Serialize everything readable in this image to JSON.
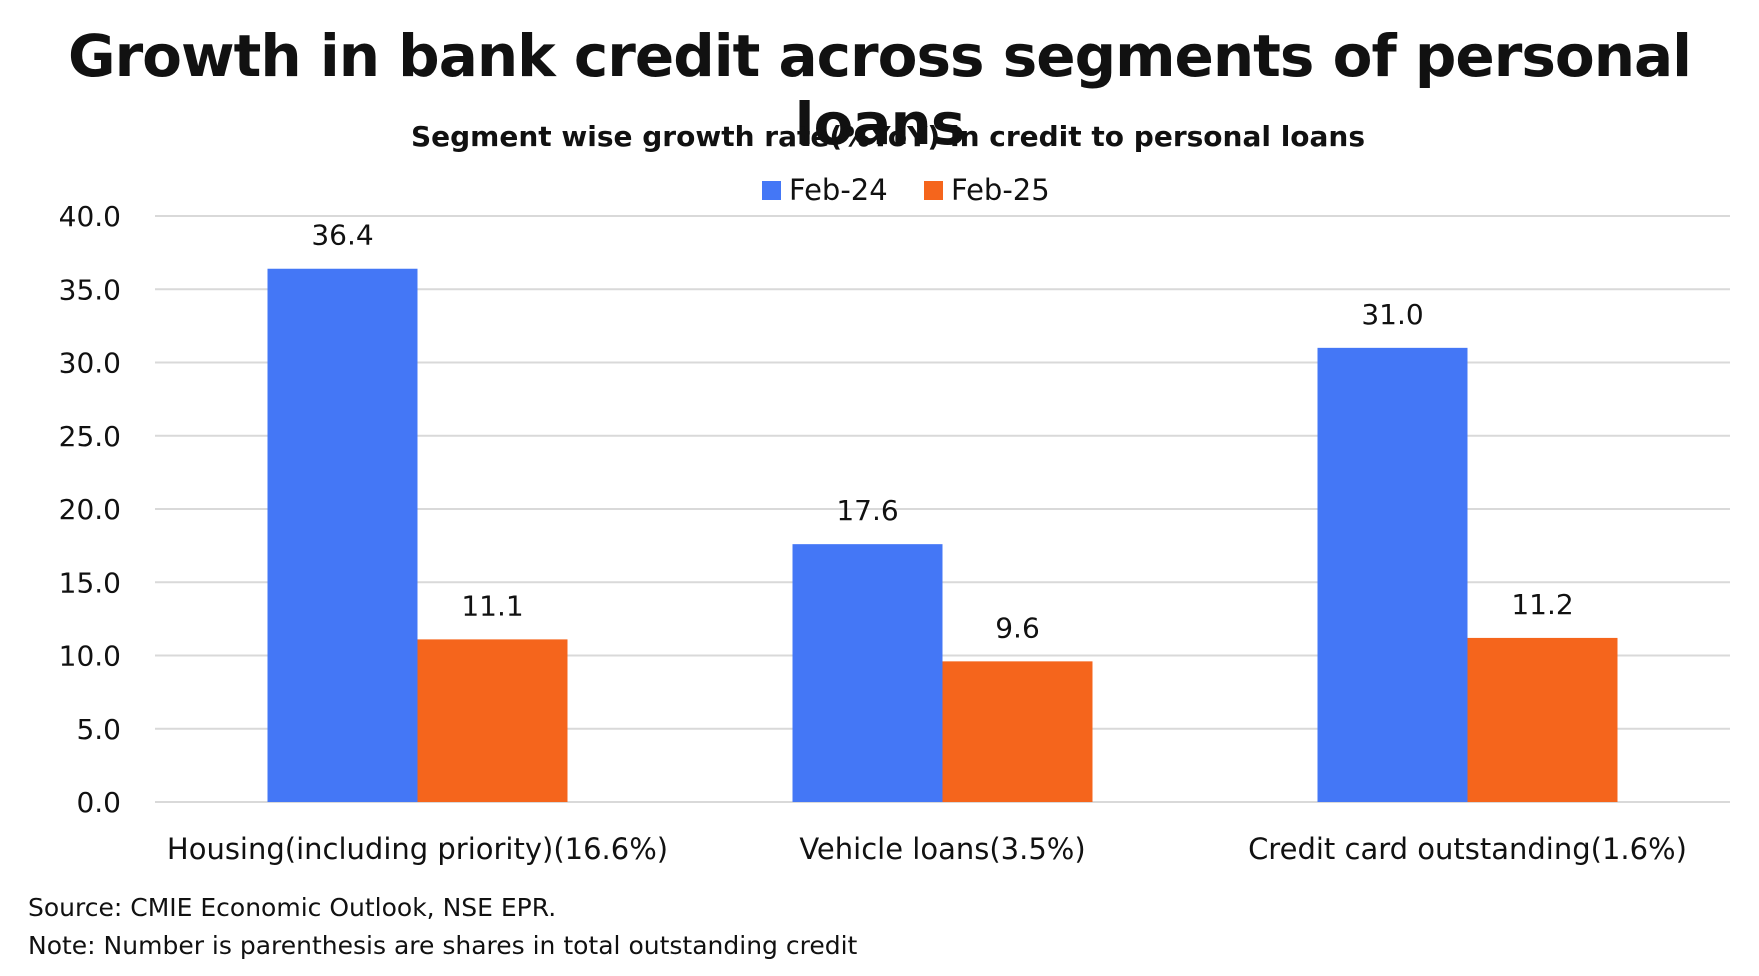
{
  "page": {
    "heading": "Growth in bank credit across segments of personal loans",
    "source": "Source: CMIE Economic Outlook, NSE EPR.",
    "note": "Note: Number is parenthesis are shares in total outstanding credit"
  },
  "chart_data": {
    "type": "bar",
    "title": "Segment wise growth rate(%YoY) in credit to personal loans",
    "xlabel": "",
    "ylabel": "",
    "categories": [
      "Housing(including priority)(16.6%)",
      "Vehicle loans(3.5%)",
      "Credit card outstanding(1.6%)"
    ],
    "series": [
      {
        "name": "Feb-24",
        "color": "#4477f6",
        "values": [
          36.4,
          17.6,
          31.0
        ]
      },
      {
        "name": "Feb-25",
        "color": "#f5651c",
        "values": [
          11.1,
          9.6,
          11.2
        ]
      }
    ],
    "ylim": [
      0,
      40
    ],
    "yticks": [
      "0.0",
      "5.0",
      "10.0",
      "15.0",
      "20.0",
      "25.0",
      "30.0",
      "35.0",
      "40.0"
    ],
    "data_labels": [
      [
        "36.4",
        "17.6",
        "31.0"
      ],
      [
        "11.1",
        "9.6",
        "11.2"
      ]
    ],
    "grid": true,
    "legend": "top-center"
  }
}
